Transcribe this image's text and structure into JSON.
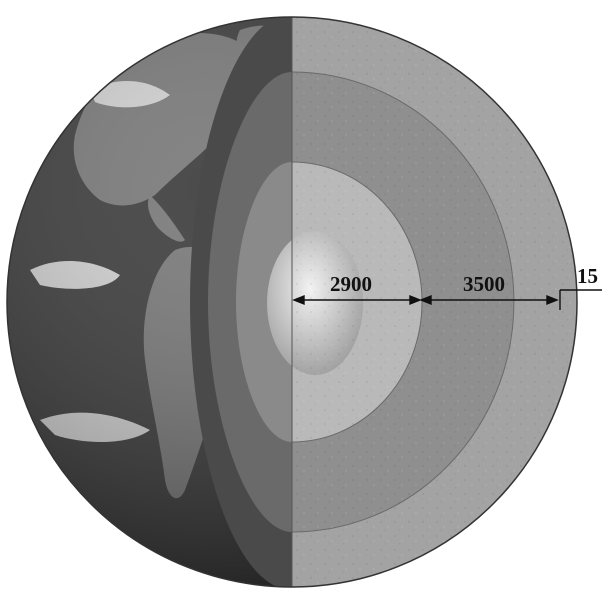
{
  "diagram": {
    "labels": {
      "core_radius": "2900",
      "mantle_thickness": "3500",
      "crust_thickness": "15"
    }
  },
  "colors": {
    "background": "#ffffff",
    "ink": "#111111",
    "inner_core": "#d9d9d9",
    "outer_core": "#b9b9b9",
    "mantle": "#8f8f8f",
    "crust": "#a3a3a3",
    "surface_ocean": "#2c2c2c",
    "surface_land": "#6e6e6e"
  }
}
